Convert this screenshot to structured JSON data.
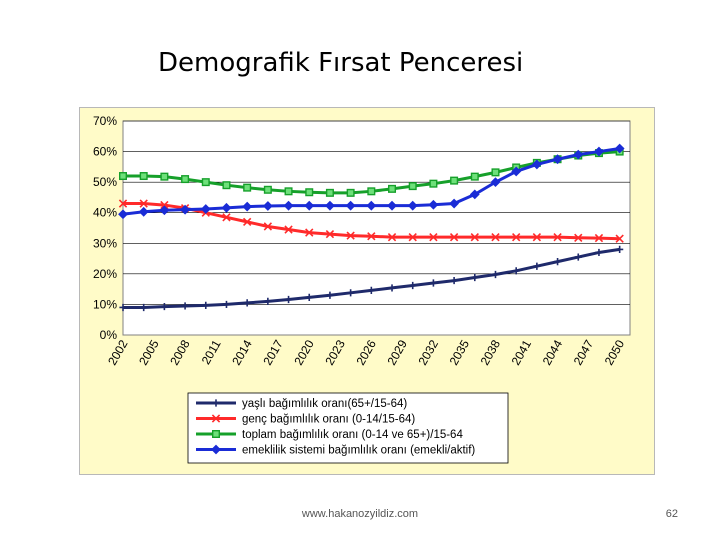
{
  "slide": {
    "title": "Demografik Fırsat Penceresi",
    "footer_url": "www.hakanozyildiz.com",
    "page_number": "62"
  },
  "chart_data": {
    "type": "line",
    "title": "",
    "xlabel": "",
    "ylabel": "",
    "ylim": [
      0,
      70
    ],
    "y_ticks": [
      "0%",
      "10%",
      "20%",
      "30%",
      "40%",
      "50%",
      "60%",
      "70%"
    ],
    "x_tick_labels": [
      "2002",
      "2005",
      "2008",
      "2011",
      "2014",
      "2017",
      "2020",
      "2023",
      "2026",
      "2029",
      "2032",
      "2035",
      "2038",
      "2041",
      "2044",
      "2047",
      "2050"
    ],
    "grid": true,
    "legend_position": "bottom",
    "x": [
      2002,
      2004,
      2006,
      2008,
      2010,
      2012,
      2014,
      2016,
      2018,
      2020,
      2022,
      2024,
      2026,
      2028,
      2030,
      2032,
      2034,
      2036,
      2038,
      2040,
      2042,
      2044,
      2046,
      2048,
      2050
    ],
    "series": [
      {
        "name": "yaşlı bağımlılık oranı(65+/15-64)",
        "color": "#1f2a6b",
        "marker": "plus",
        "values": [
          9,
          9,
          9.3,
          9.5,
          9.7,
          10,
          10.5,
          11,
          11.6,
          12.3,
          13,
          13.8,
          14.6,
          15.4,
          16.2,
          17,
          17.8,
          18.8,
          19.8,
          21,
          22.5,
          24,
          25.5,
          27,
          28
        ]
      },
      {
        "name": "genç bağımlılık oranı (0-14/15-64)",
        "color": "#ff2a2a",
        "marker": "x",
        "values": [
          43,
          43,
          42.5,
          41.5,
          40,
          38.5,
          37,
          35.5,
          34.5,
          33.5,
          33,
          32.5,
          32.3,
          32,
          32,
          32,
          32,
          32,
          32,
          32,
          32,
          32,
          31.8,
          31.7,
          31.5
        ]
      },
      {
        "name": "toplam bağımlılık oranı (0-14 ve 65+)/15-64",
        "color": "#16a02a",
        "marker": "square",
        "values": [
          52,
          52,
          51.8,
          51,
          50,
          49,
          48.2,
          47.5,
          47,
          46.7,
          46.5,
          46.5,
          47,
          47.8,
          48.7,
          49.5,
          50.5,
          51.8,
          53.2,
          54.8,
          56.3,
          57.5,
          58.7,
          59.5,
          60
        ]
      },
      {
        "name": "emeklilik sistemi bağımlılık oranı (emekli/aktif)",
        "color": "#1a2cd6",
        "marker": "diamond",
        "values": [
          39.5,
          40.3,
          40.8,
          41,
          41.2,
          41.6,
          42,
          42.2,
          42.3,
          42.3,
          42.3,
          42.3,
          42.3,
          42.3,
          42.3,
          42.6,
          43,
          46,
          50,
          53.5,
          55.8,
          57.5,
          59,
          60,
          61
        ]
      }
    ]
  }
}
